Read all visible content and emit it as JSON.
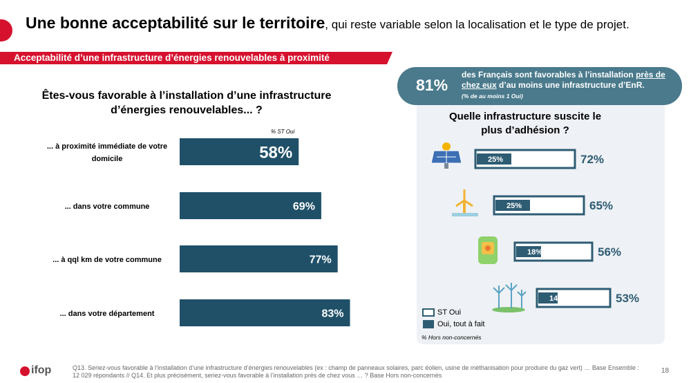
{
  "header": {
    "title_bold": "Une bonne acceptabilité sur le territoire",
    "title_rest": ", qui reste variable selon la localisation et le type de projet."
  },
  "banner": "Acceptabilité d’une infrastructure d’énergies renouvelables à proximité",
  "left_chart": {
    "type": "bar",
    "title": "Êtes-vous favorable à l’installation d’une infrastructure d’énergies renouvelables... ?",
    "note": "% ST Oui",
    "categories": [
      "... à proximité immédiate de votre domicile",
      "... dans votre commune",
      "... à qql km de votre commune",
      "... dans votre département"
    ],
    "values": [
      58,
      69,
      77,
      83
    ],
    "value_labels": [
      "58%",
      "69%",
      "77%",
      "83%"
    ],
    "color": "#1f5068"
  },
  "callout": {
    "value_label": "81%",
    "text_before": "des Français sont favorables à l’installation ",
    "text_underlined": "près de chez eux",
    "text_after": " d’au moins une infrastructure d’EnR.",
    "note": "(% de au moins 1 Oui)"
  },
  "right_chart": {
    "type": "bar",
    "title": "Quelle infrastructure suscite le plus d’adhésion ?",
    "series": [
      {
        "name": "ST Oui",
        "color": "#ffffff",
        "values": [
          72,
          65,
          56,
          53
        ],
        "value_labels": [
          "72%",
          "65%",
          "56%",
          "53%"
        ]
      },
      {
        "name": "Oui, tout à fait",
        "color": "#2e5c73",
        "values": [
          25,
          25,
          18,
          14
        ],
        "value_labels": [
          "25%",
          "25%",
          "18%",
          "14%"
        ]
      }
    ],
    "note": "% Hors non-concernés"
  },
  "footer": {
    "text": "Q13. Seriez-vous favorable à l’installation d’une infrastructure d’énergies renouvelables (ex : champ de panneaux solaires, parc éolien, usine de méthanisation pour produire du gaz vert) … Base Ensemble : 12 029 répondants // Q14. Et plus précisément, seriez-vous favorable à l’installation près de chez vous … ? Base Hors non-concernés",
    "page": "18",
    "logo": "ifop"
  }
}
